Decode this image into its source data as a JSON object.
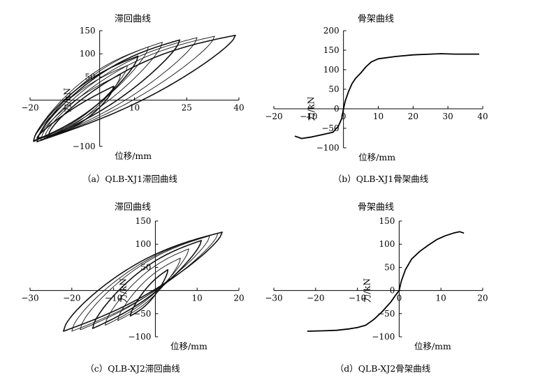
{
  "chart_data": [
    {
      "id": "a",
      "type": "line",
      "title": "滞回曲线",
      "xlabel": "位移/mm",
      "ylabel": "力/kN",
      "caption": "（a）QLB-XJ1滞回曲线",
      "xlim": [
        -20,
        40
      ],
      "ylim": [
        -100,
        150
      ],
      "xticks": [
        -20,
        10,
        25,
        40
      ],
      "xtick_labels": [
        "−20",
        "10",
        "25",
        "40"
      ],
      "yticks": [
        -100,
        50,
        100,
        150
      ],
      "ytick_labels": [
        "−100",
        "50",
        "100",
        "150"
      ],
      "grid": false,
      "loops": [
        {
          "xmin": -18,
          "xmax": 4,
          "yneg": -82,
          "ypos": 30
        },
        {
          "xmin": -18,
          "xmax": 6,
          "yneg": -85,
          "ypos": 55
        },
        {
          "xmin": -19,
          "xmax": 8,
          "yneg": -88,
          "ypos": 75
        },
        {
          "xmin": -19,
          "xmax": 11,
          "yneg": -88,
          "ypos": 95
        },
        {
          "xmin": -19,
          "xmax": 14,
          "yneg": -90,
          "ypos": 115
        },
        {
          "xmin": -18,
          "xmax": 18,
          "yneg": -90,
          "ypos": 125
        },
        {
          "xmin": -18,
          "xmax": 23,
          "yneg": -90,
          "ypos": 130
        },
        {
          "xmin": -17,
          "xmax": 28,
          "yneg": -88,
          "ypos": 135
        },
        {
          "xmin": -16,
          "xmax": 33,
          "yneg": -85,
          "ypos": 138
        },
        {
          "xmin": -15,
          "xmax": 39,
          "yneg": -82,
          "ypos": 140
        }
      ]
    },
    {
      "id": "b",
      "type": "line",
      "title": "骨架曲线",
      "xlabel": "位移/mm",
      "ylabel": "力/kN",
      "caption": "（b）QLB-XJ1骨架曲线",
      "xlim": [
        -20,
        40
      ],
      "ylim": [
        -100,
        200
      ],
      "xticks": [
        -20,
        -10,
        0,
        10,
        20,
        30,
        40
      ],
      "xtick_labels": [
        "−20",
        "−10",
        "0",
        "10",
        "20",
        "30",
        "40"
      ],
      "yticks": [
        -100,
        -50,
        0,
        50,
        100,
        150,
        200
      ],
      "ytick_labels": [
        "−100",
        "−50",
        "0",
        "50",
        "100",
        "150",
        "200"
      ],
      "grid": false,
      "series": [
        {
          "x": [
            -14,
            -12,
            -9,
            -6,
            -3,
            -1.5,
            -0.5,
            0,
            0.5,
            1.5,
            2.5,
            3.5,
            5,
            6.5,
            8,
            10,
            15,
            20,
            25,
            28,
            32,
            36,
            39
          ],
          "y": [
            -70,
            -76,
            -72,
            -66,
            -60,
            -45,
            -25,
            0,
            20,
            45,
            65,
            78,
            92,
            108,
            120,
            128,
            134,
            138,
            140,
            141,
            140,
            140,
            140
          ]
        }
      ]
    },
    {
      "id": "c",
      "type": "line",
      "title": "滞回曲线",
      "xlabel": "位移/mm",
      "ylabel": "力/kN",
      "caption": "（c）QLB-XJ2滞回曲线",
      "xlim": [
        -30,
        20
      ],
      "ylim": [
        -100,
        150
      ],
      "xticks": [
        -30,
        -20,
        -10,
        10,
        20
      ],
      "xtick_labels": [
        "−30",
        "−20",
        "−10",
        "10",
        "20"
      ],
      "yticks": [
        -100,
        -50,
        50,
        100,
        150
      ],
      "ytick_labels": [
        "−100",
        "−50",
        "50",
        "100",
        "150"
      ],
      "grid": false,
      "loops": [
        {
          "xmin": -6,
          "xmax": 3,
          "yneg": -55,
          "ypos": 45
        },
        {
          "xmin": -9,
          "xmax": 6,
          "yneg": -65,
          "ypos": 70
        },
        {
          "xmin": -12,
          "xmax": 8,
          "yneg": -75,
          "ypos": 90
        },
        {
          "xmin": -15,
          "xmax": 11,
          "yneg": -82,
          "ypos": 108
        },
        {
          "xmin": -18,
          "xmax": 13,
          "yneg": -85,
          "ypos": 118
        },
        {
          "xmin": -20,
          "xmax": 15,
          "yneg": -88,
          "ypos": 124
        },
        {
          "xmin": -22,
          "xmax": 16,
          "yneg": -88,
          "ypos": 126
        }
      ]
    },
    {
      "id": "d",
      "type": "line",
      "title": "骨架曲线",
      "xlabel": "位移/mm",
      "ylabel": "力/kN",
      "caption": "（d）QLB-XJ2骨架曲线",
      "xlim": [
        -30,
        20
      ],
      "ylim": [
        -100,
        150
      ],
      "xticks": [
        -30,
        -20,
        -10,
        0,
        10,
        20
      ],
      "xtick_labels": [
        "−30",
        "−20",
        "−10",
        "0",
        "10",
        "20"
      ],
      "yticks": [
        -100,
        -50,
        0,
        50,
        100,
        150
      ],
      "ytick_labels": [
        "−100",
        "−50",
        "0",
        "50",
        "100",
        "150"
      ],
      "grid": false,
      "series": [
        {
          "x": [
            -22,
            -18,
            -15,
            -12,
            -10,
            -8,
            -6,
            -4,
            -2,
            -1,
            0,
            0.5,
            1.5,
            3,
            5,
            7,
            9,
            11,
            13,
            14.5,
            15.5
          ],
          "y": [
            -88,
            -87,
            -86,
            -83,
            -80,
            -75,
            -62,
            -45,
            -25,
            -12,
            0,
            20,
            45,
            68,
            85,
            98,
            110,
            118,
            124,
            127,
            124
          ]
        }
      ]
    }
  ]
}
